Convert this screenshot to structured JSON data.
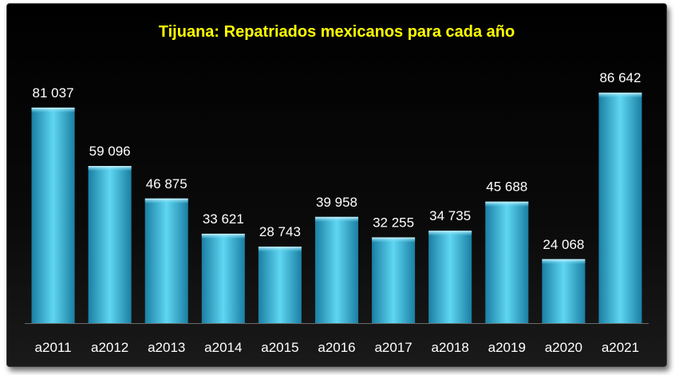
{
  "chart_data": {
    "type": "bar",
    "title": "Tijuana: Repatriados mexicanos para cada año",
    "categories": [
      "a2011",
      "a2012",
      "a2013",
      "a2014",
      "a2015",
      "a2016",
      "a2017",
      "a2018",
      "a2019",
      "a2020",
      "a2021"
    ],
    "values": [
      81037,
      59096,
      46875,
      33621,
      28743,
      39958,
      32255,
      34735,
      45688,
      24068,
      86642
    ],
    "value_labels": [
      "81 037",
      "59 096",
      "46 875",
      "33 621",
      "28 743",
      "39 958",
      "32 255",
      "34 735",
      "45 688",
      "24 068",
      "86 642"
    ],
    "xlabel": "",
    "ylabel": "",
    "ylim": [
      0,
      90000
    ],
    "grid": false,
    "legend": "none",
    "colors": {
      "bar_top": "#5fd6f2",
      "bar_mid": "#2fb6de",
      "bar_bottom": "#1a7fa3",
      "title": "#ffff00",
      "labels": "#ffffff",
      "background": "#000000"
    }
  }
}
